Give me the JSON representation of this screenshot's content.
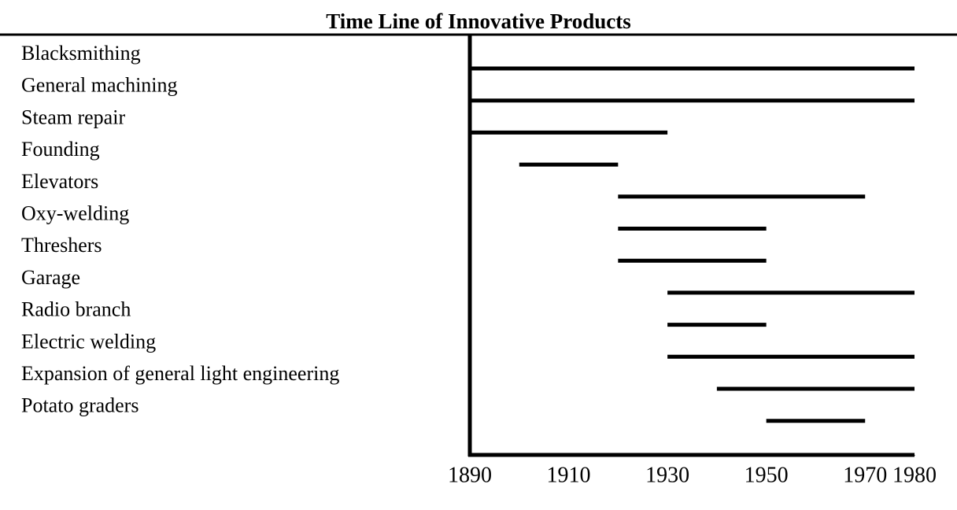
{
  "chart_data": {
    "type": "timeline",
    "title": "Time Line of Innovative Products",
    "categories": [
      "Blacksmithing",
      "General machining",
      "Steam repair",
      "Founding",
      "Elevators",
      "Oxy-welding",
      "Threshers",
      "Garage",
      "Radio branch",
      "Electric welding",
      "Expansion of general light engineering",
      "Potato graders"
    ],
    "start": [
      1890,
      1890,
      1890,
      1900,
      1920,
      1920,
      1920,
      1930,
      1930,
      1930,
      1940,
      1950
    ],
    "end": [
      1980,
      1980,
      1930,
      1920,
      1970,
      1950,
      1950,
      1980,
      1950,
      1980,
      1980,
      1970
    ],
    "color": "#000000",
    "xlim": [
      1890,
      1980
    ],
    "xticks": [
      1890,
      1910,
      1930,
      1950,
      1970,
      1980
    ]
  }
}
